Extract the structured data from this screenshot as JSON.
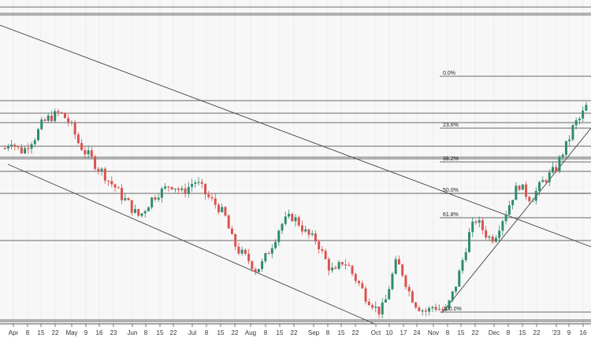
{
  "chart_data": {
    "type": "candlestick",
    "title": "",
    "xlabel": "",
    "ylabel": "",
    "grid": true,
    "colors": {
      "up": "#2e8b6e",
      "down": "#d9534f",
      "line": "#333333",
      "background": "#f7f7f7"
    },
    "x_axis": {
      "ticks": [
        "Apr",
        "8",
        "15",
        "22",
        "May",
        "9",
        "16",
        "23",
        "Jun",
        "8",
        "15",
        "22",
        "Jul",
        "8",
        "15",
        "22",
        "Aug",
        "8",
        "15",
        "22",
        "Sep",
        "8",
        "15",
        "22",
        "Oct",
        "10",
        "17",
        "24",
        "Nov",
        "8",
        "15",
        "22",
        "Dec",
        "8",
        "15",
        "22",
        "'23",
        "9",
        "16"
      ]
    },
    "fibonacci": {
      "levels": [
        "0.0%",
        "23.6%",
        "38.2%",
        "50.0%",
        "61.8%",
        "100.0%"
      ]
    },
    "price_path": [
      0.58,
      0.61,
      0.58,
      0.57,
      0.6,
      0.62,
      0.66,
      0.68,
      0.69,
      0.7,
      0.68,
      0.65,
      0.6,
      0.57,
      0.55,
      0.52,
      0.5,
      0.47,
      0.45,
      0.42,
      0.4,
      0.37,
      0.35,
      0.38,
      0.41,
      0.43,
      0.44,
      0.46,
      0.45,
      0.43,
      0.45,
      0.47,
      0.45,
      0.42,
      0.4,
      0.38,
      0.35,
      0.28,
      0.24,
      0.22,
      0.2,
      0.17,
      0.19,
      0.23,
      0.27,
      0.32,
      0.34,
      0.35,
      0.33,
      0.3,
      0.28,
      0.27,
      0.22,
      0.18,
      0.16,
      0.2,
      0.19,
      0.15,
      0.12,
      0.08,
      0.06,
      0.03,
      0.05,
      0.13,
      0.2,
      0.16,
      0.1,
      0.06,
      0.04,
      0.03,
      0.05,
      0.04,
      0.03,
      0.08,
      0.14,
      0.22,
      0.3,
      0.34,
      0.31,
      0.28,
      0.28,
      0.33,
      0.37,
      0.42,
      0.46,
      0.43,
      0.41,
      0.44,
      0.47,
      0.49,
      0.51,
      0.56,
      0.6,
      0.66,
      0.68,
      0.72
    ]
  }
}
